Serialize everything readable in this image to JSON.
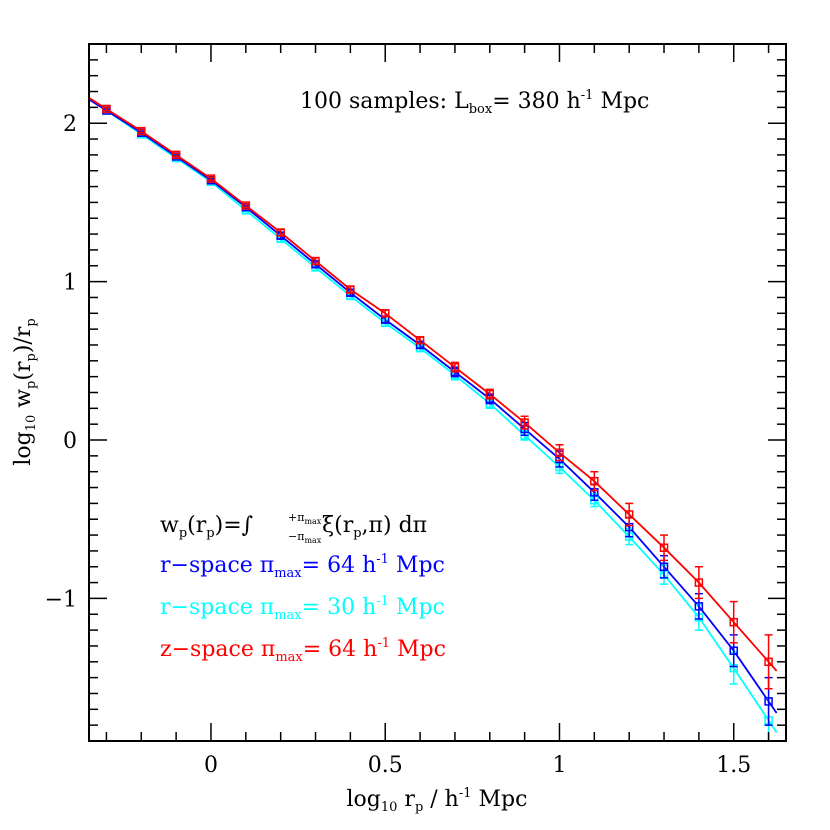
{
  "chart_data": {
    "type": "line",
    "title": "",
    "annotation": {
      "prefix": "100 samples: L",
      "sub": "box",
      "suffix": "=  380 h",
      "sup": "-1",
      "tail": " Mpc"
    },
    "xlabel": {
      "pre": "log",
      "sub1": "10",
      "mid": " r",
      "sub2": "p",
      "post": " / h",
      "sup": "-1",
      "tail": " Mpc"
    },
    "ylabel": {
      "pre": "log",
      "sub1": "10",
      "mid": " w",
      "sub2": "p",
      "mid2": "(r",
      "sub3": "p",
      "mid3": ")/r",
      "sub4": "p"
    },
    "xlim": [
      -0.35,
      1.65
    ],
    "ylim": [
      -1.9,
      2.5
    ],
    "xticks": [
      0,
      0.5,
      1,
      1.5
    ],
    "xtick_labels": [
      "0",
      "0.5",
      "1",
      "1.5"
    ],
    "yticks": [
      -1,
      0,
      1,
      2
    ],
    "ytick_labels": [
      "−1",
      "0",
      "1",
      "2"
    ],
    "formula": {
      "lhs_w": "w",
      "lhs_wsub": "p",
      "lhs_r": "(r",
      "lhs_rsub": "p",
      "lhs_close": ")=",
      "integral": "∫",
      "upper": "+π",
      "upper_sub": "max",
      "lower": "−π",
      "lower_sub": "max",
      "xi": " ξ(r",
      "xi_sub": "p",
      "xi_tail": ",π)  dπ"
    },
    "x": [
      -0.3,
      -0.2,
      -0.1,
      0.0,
      0.1,
      0.2,
      0.3,
      0.4,
      0.5,
      0.6,
      0.7,
      0.8,
      0.9,
      1.0,
      1.1,
      1.2,
      1.3,
      1.4,
      1.5,
      1.6
    ],
    "series": [
      {
        "name": "r−space πmax= 64 h⁻¹ Mpc",
        "legend": {
          "pre": "r−space π",
          "sub": "max",
          "mid": "= 64 h",
          "sup": "-1",
          "tail": " Mpc"
        },
        "color": "#0000ff",
        "values": [
          2.08,
          1.94,
          1.79,
          1.64,
          1.47,
          1.29,
          1.11,
          0.93,
          0.76,
          0.6,
          0.43,
          0.26,
          0.07,
          -0.12,
          -0.33,
          -0.55,
          -0.8,
          -1.05,
          -1.33,
          -1.65
        ],
        "errors": [
          0.01,
          0.01,
          0.01,
          0.01,
          0.01,
          0.02,
          0.02,
          0.02,
          0.02,
          0.02,
          0.03,
          0.03,
          0.04,
          0.05,
          0.05,
          0.06,
          0.07,
          0.08,
          0.1,
          0.15
        ]
      },
      {
        "name": "r−space πmax= 30 h⁻¹ Mpc",
        "legend": {
          "pre": "r−space π",
          "sub": "max",
          "mid": "= 30 h",
          "sup": "-1",
          "tail": " Mpc"
        },
        "color": "#00ffff",
        "values": [
          2.08,
          1.93,
          1.78,
          1.63,
          1.45,
          1.27,
          1.09,
          0.91,
          0.74,
          0.58,
          0.41,
          0.23,
          0.03,
          -0.17,
          -0.38,
          -0.61,
          -0.85,
          -1.12,
          -1.44,
          -1.77
        ],
        "errors": [
          0.01,
          0.01,
          0.01,
          0.01,
          0.01,
          0.02,
          0.02,
          0.02,
          0.02,
          0.02,
          0.03,
          0.03,
          0.03,
          0.04,
          0.04,
          0.05,
          0.06,
          0.08,
          0.1,
          0.14
        ]
      },
      {
        "name": "z−space πmax= 64 h⁻¹ Mpc",
        "legend": {
          "pre": "z−space π",
          "sub": "max",
          "mid": "= 64 h",
          "sup": "-1",
          "tail": " Mpc"
        },
        "color": "#ff0000",
        "values": [
          2.09,
          1.95,
          1.8,
          1.65,
          1.48,
          1.31,
          1.13,
          0.95,
          0.8,
          0.63,
          0.46,
          0.29,
          0.11,
          -0.08,
          -0.26,
          -0.47,
          -0.68,
          -0.9,
          -1.15,
          -1.4
        ],
        "errors": [
          0.01,
          0.01,
          0.01,
          0.01,
          0.01,
          0.02,
          0.02,
          0.02,
          0.02,
          0.02,
          0.03,
          0.03,
          0.04,
          0.05,
          0.06,
          0.07,
          0.08,
          0.1,
          0.13,
          0.17
        ]
      }
    ]
  }
}
